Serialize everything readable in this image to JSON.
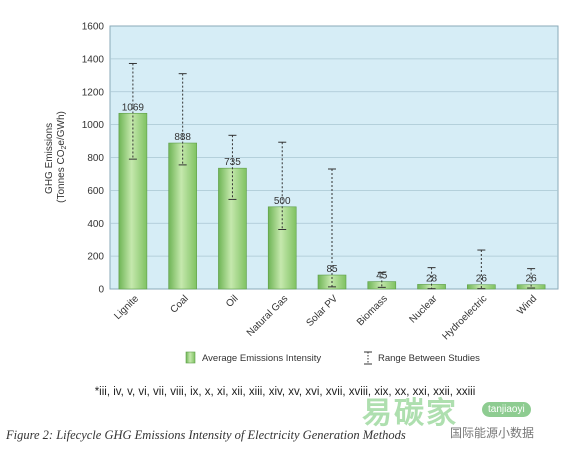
{
  "chart_data": {
    "type": "bar",
    "categories": [
      "Lignite",
      "Coal",
      "Oil",
      "Natural Gas",
      "Solar PV",
      "Biomass",
      "Nuclear",
      "Hydroelectric",
      "Wind"
    ],
    "series": [
      {
        "name": "Average Emissions Intensity",
        "values": [
          1069,
          888,
          735,
          500,
          85,
          45,
          28,
          26,
          26
        ],
        "value_labels": [
          "1069",
          "888",
          "735",
          "500",
          "85",
          "45",
          "28",
          "26",
          "26"
        ]
      }
    ],
    "ranges": {
      "name": "Range Between Studies",
      "low": [
        790,
        755,
        545,
        362,
        13,
        10,
        2,
        2,
        6
      ],
      "high": [
        1372,
        1310,
        935,
        893,
        730,
        101,
        130,
        237,
        124
      ]
    },
    "ylabel_line1": "GHG Emissions",
    "ylabel_line2_pre": "(Tonnes CO",
    "ylabel_line2_sub": "2",
    "ylabel_line2_post": "e/GWh)",
    "ylim": [
      0,
      1600
    ],
    "yticks": [
      "0",
      "200",
      "400",
      "600",
      "800",
      "1000",
      "1200",
      "1400",
      "1600"
    ],
    "grid": true,
    "legend_placement": "bottom",
    "colors": {
      "plot_background": "#d6edf6",
      "bar_fill": "#8fcf72",
      "bar_highlight": "#c5e8ad",
      "bar_edge": "#5e9e48",
      "error_bar": "#333333"
    }
  },
  "footnote": "*iii, iv, v, vi, vii, viii, ix, x, xi, xii, xiii, xiv, xv, xvi, xvii, xviii, xix, xx, xxi, xxii, xxiii",
  "caption": "Figure 2: Lifecycle GHG Emissions Intensity of Electricity Generation Methods",
  "watermark": {
    "logo_text": "易碳家",
    "handle": "tanjiaoyi",
    "subtitle": "国际能源小数据"
  }
}
